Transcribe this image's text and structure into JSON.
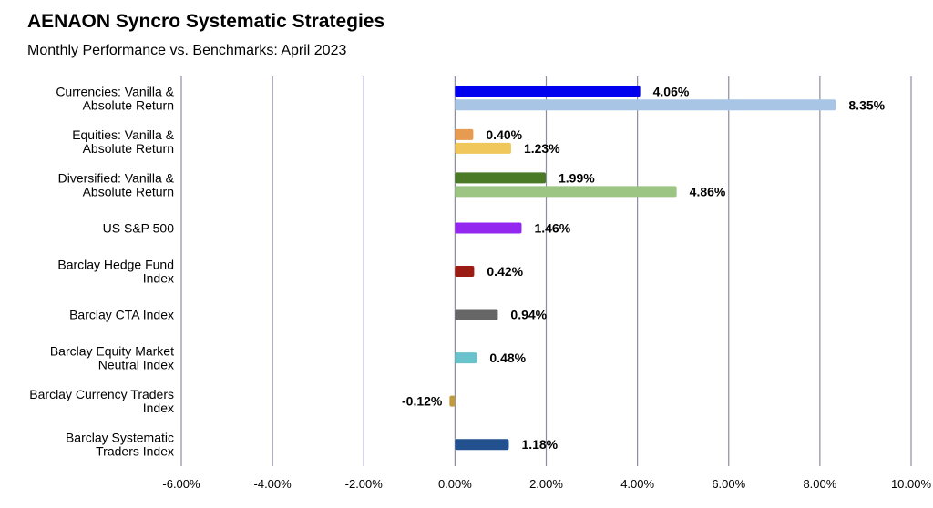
{
  "chart_data": {
    "type": "bar",
    "orientation": "horizontal",
    "title": "AENAON Syncro Systematic Strategies",
    "subtitle": "Monthly Performance vs. Benchmarks: April 2023",
    "xlim": [
      -6,
      10
    ],
    "x_ticks": [
      "-6.00%",
      "-4.00%",
      "-2.00%",
      "0.00%",
      "2.00%",
      "4.00%",
      "6.00%",
      "8.00%",
      "10.00%"
    ],
    "grid": "vertical",
    "groups": [
      {
        "label": [
          "Currencies: Vanilla &",
          "Absolute Return"
        ],
        "bars": [
          {
            "value": 4.06,
            "label": "4.06%",
            "color": "#0000ee"
          },
          {
            "value": 8.35,
            "label": "8.35%",
            "color": "#a8c5e6"
          }
        ]
      },
      {
        "label": [
          "Equities: Vanilla &",
          "Absolute Return"
        ],
        "bars": [
          {
            "value": 0.4,
            "label": "0.40%",
            "color": "#e69b50"
          },
          {
            "value": 1.23,
            "label": "1.23%",
            "color": "#f0c75a"
          }
        ]
      },
      {
        "label": [
          "Diversified: Vanilla &",
          "Absolute Return"
        ],
        "bars": [
          {
            "value": 1.99,
            "label": "1.99%",
            "color": "#4a7a26"
          },
          {
            "value": 4.86,
            "label": "4.86%",
            "color": "#9cc584"
          }
        ]
      },
      {
        "label": [
          "US S&P 500"
        ],
        "bars": [
          {
            "value": 1.46,
            "label": "1.46%",
            "color": "#9327f0"
          }
        ]
      },
      {
        "label": [
          "Barclay Hedge Fund",
          "Index"
        ],
        "bars": [
          {
            "value": 0.42,
            "label": "0.42%",
            "color": "#9a1c15"
          }
        ]
      },
      {
        "label": [
          "Barclay CTA Index"
        ],
        "bars": [
          {
            "value": 0.94,
            "label": "0.94%",
            "color": "#666666"
          }
        ]
      },
      {
        "label": [
          "Barclay Equity Market",
          "Neutral Index"
        ],
        "bars": [
          {
            "value": 0.48,
            "label": "0.48%",
            "color": "#6ac3cc"
          }
        ]
      },
      {
        "label": [
          "Barclay Currency Traders",
          "Index"
        ],
        "bars": [
          {
            "value": -0.12,
            "label": "-0.12%",
            "color": "#c09a3c"
          }
        ]
      },
      {
        "label": [
          "Barclay Systematic",
          "Traders Index"
        ],
        "bars": [
          {
            "value": 1.18,
            "label": "1.18%",
            "color": "#23508f"
          }
        ]
      }
    ],
    "gridline_color": "#8c8ca3"
  }
}
